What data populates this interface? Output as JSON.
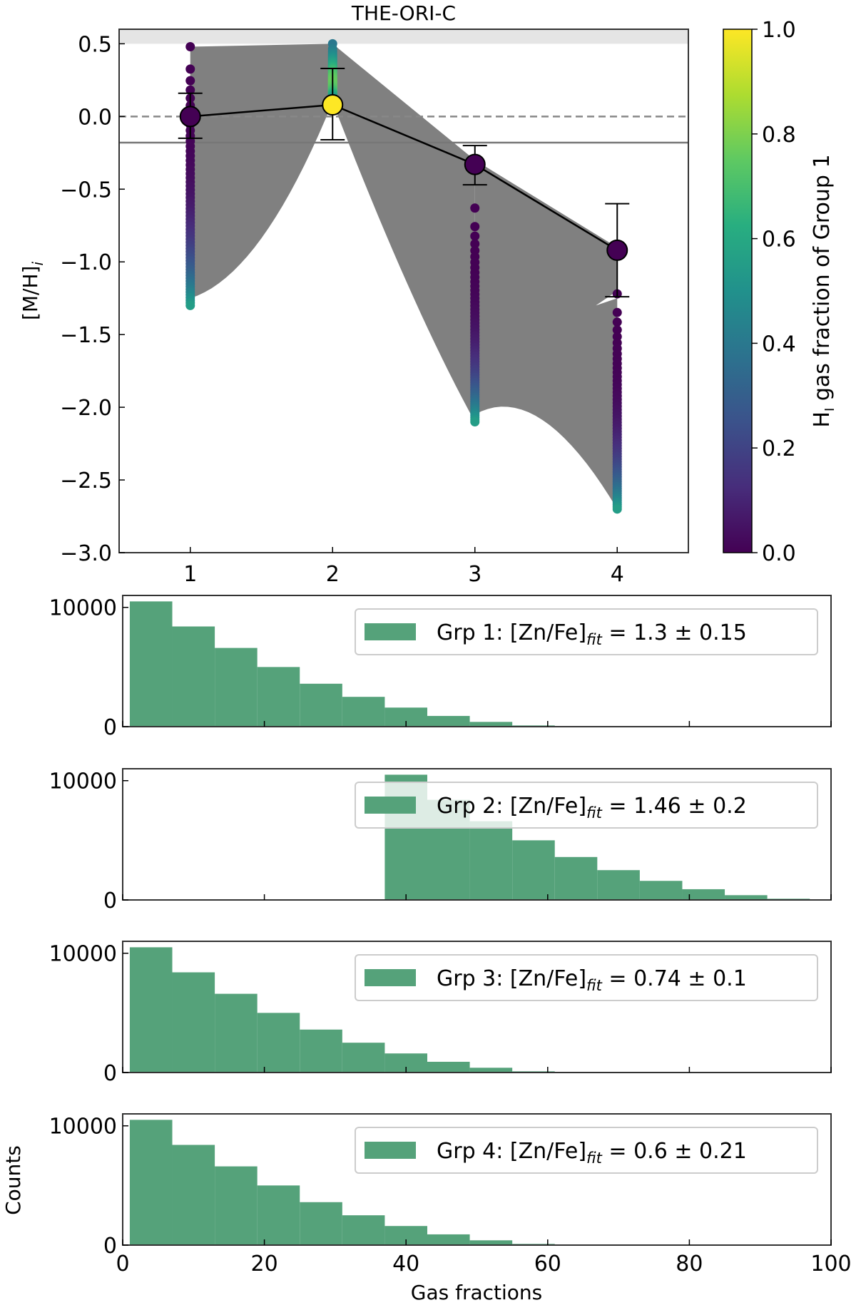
{
  "chart_data": [
    {
      "type": "scatter",
      "title": "THE-ORI-C",
      "xlabel": "",
      "ylabel": "[M/H]_i",
      "xlim": [
        0.5,
        4.5
      ],
      "ylim": [
        -3.0,
        0.6
      ],
      "xticks": [
        "1",
        "2",
        "3",
        "4"
      ],
      "yticks": [
        "0.5",
        "0.0",
        "−0.5",
        "−1.0",
        "−1.5",
        "−2.0",
        "−2.5",
        "−3.0"
      ],
      "grid": false,
      "shaded_band": [
        0.5,
        0.6
      ],
      "dashed_line": 0.0,
      "solid_line": -0.18,
      "means": [
        {
          "x": 1,
          "y": 0.0,
          "err_low": -0.15,
          "err_high": 0.16,
          "color_value": 0.0
        },
        {
          "x": 2,
          "y": 0.08,
          "err_low": -0.16,
          "err_high": 0.33,
          "color_value": 1.0
        },
        {
          "x": 3,
          "y": -0.33,
          "err_low": -0.47,
          "err_high": -0.2,
          "color_value": 0.0
        },
        {
          "x": 4,
          "y": -0.92,
          "err_low": -1.24,
          "err_high": -0.6,
          "color_value": 0.0
        }
      ],
      "sample_ranges": [
        {
          "x": 1,
          "y_max": 0.48,
          "y_min": -1.3
        },
        {
          "x": 2,
          "y_max": 0.5,
          "y_min": 0.1
        },
        {
          "x": 3,
          "y_max": -0.63,
          "y_min": -2.1
        },
        {
          "x": 4,
          "y_max": -1.22,
          "y_min": -2.7
        }
      ],
      "colorbar": {
        "label": "H_I gas fraction of Group 1",
        "label_main": "H",
        "label_sub": "I",
        "label_rest": " gas fraction of Group 1",
        "colormap": "viridis",
        "range": [
          0.0,
          1.0
        ],
        "ticks": [
          "0.0",
          "0.2",
          "0.4",
          "0.6",
          "0.8",
          "1.0"
        ]
      },
      "line_color": "#808080"
    },
    {
      "type": "bar",
      "subtype": "histogram",
      "xlim": [
        0,
        100
      ],
      "ylim": [
        0,
        11000
      ],
      "xlabel": "Gas fractions",
      "ylabel": "Counts",
      "xticks": [
        "0",
        "20",
        "40",
        "60",
        "80",
        "100"
      ],
      "yticks": [
        "0",
        "10000"
      ],
      "color": "#55a27a",
      "panels": [
        {
          "legend": "Grp 1: [Zn/Fe]_fit = 1.3 ± 0.15",
          "legend_pre": "Grp 1: [Zn/Fe]",
          "legend_sub": "fit",
          "legend_post": " = 1.3 ± 0.15",
          "bin_edges": [
            1,
            7,
            13,
            19,
            25,
            31,
            37,
            43,
            49,
            55,
            61
          ],
          "counts": [
            10500,
            8400,
            6600,
            5000,
            3600,
            2500,
            1600,
            900,
            400,
            100
          ]
        },
        {
          "legend": "Grp 2: [Zn/Fe]_fit = 1.46 ± 0.2",
          "legend_pre": "Grp 2: [Zn/Fe]",
          "legend_sub": "fit",
          "legend_post": " = 1.46 ± 0.2",
          "bin_edges": [
            37,
            43,
            49,
            55,
            61,
            67,
            73,
            79,
            85,
            91,
            97
          ],
          "counts": [
            10500,
            8400,
            6600,
            5000,
            3600,
            2500,
            1600,
            900,
            400,
            100
          ]
        },
        {
          "legend": "Grp 3: [Zn/Fe]_fit = 0.74 ± 0.1",
          "legend_pre": "Grp 3: [Zn/Fe]",
          "legend_sub": "fit",
          "legend_post": " = 0.74 ± 0.1",
          "bin_edges": [
            1,
            7,
            13,
            19,
            25,
            31,
            37,
            43,
            49,
            55,
            61
          ],
          "counts": [
            10500,
            8400,
            6600,
            5000,
            3600,
            2500,
            1600,
            900,
            400,
            100
          ]
        },
        {
          "legend": "Grp 4: [Zn/Fe]_fit = 0.6 ± 0.21",
          "legend_pre": "Grp 4: [Zn/Fe]",
          "legend_sub": "fit",
          "legend_post": " = 0.6 ± 0.21",
          "bin_edges": [
            1,
            7,
            13,
            19,
            25,
            31,
            37,
            43,
            49,
            55,
            61
          ],
          "counts": [
            10500,
            8400,
            6600,
            5000,
            3600,
            2500,
            1600,
            900,
            400,
            100
          ]
        }
      ]
    }
  ]
}
